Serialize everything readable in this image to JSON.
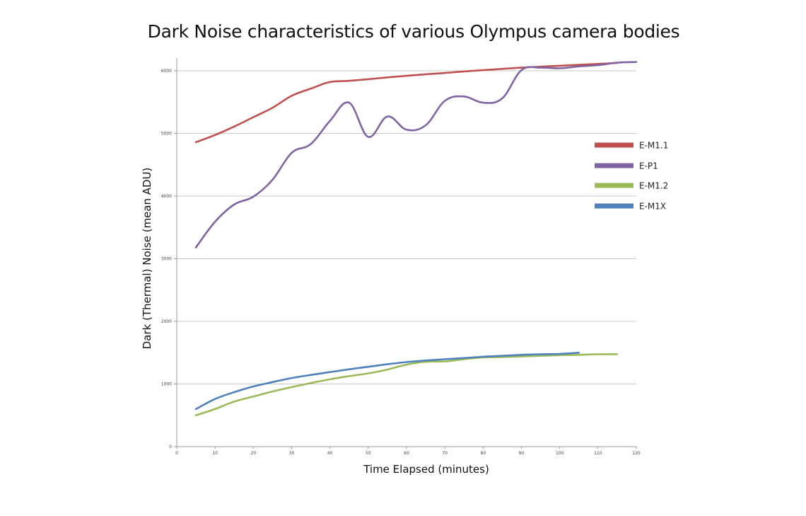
{
  "chart_data": {
    "type": "line",
    "title": "Dark Noise characteristics of various Olympus camera bodies",
    "xlabel": "Time Elapsed (minutes)",
    "ylabel": "Dark (Thermal) Noise  (mean ADU)",
    "xlim": [
      0,
      120
    ],
    "ylim": [
      0,
      6000
    ],
    "x_ticks": [
      0,
      10,
      20,
      30,
      40,
      50,
      60,
      70,
      80,
      90,
      100,
      110,
      120
    ],
    "y_ticks": [
      0,
      1000,
      2000,
      3000,
      4000,
      5000,
      6000
    ],
    "grid": "horizontal",
    "legend_position": "right",
    "series": [
      {
        "name": "E-M1.1",
        "color": "#C0504D",
        "x": [
          5,
          10,
          15,
          20,
          25,
          30,
          35,
          40,
          45,
          50,
          55,
          60,
          65,
          70,
          75,
          80,
          85,
          90,
          95,
          100,
          105,
          110,
          115
        ],
        "values": [
          4860,
          4975,
          5110,
          5260,
          5410,
          5600,
          5715,
          5820,
          5840,
          5865,
          5895,
          5920,
          5945,
          5965,
          5990,
          6010,
          6030,
          6050,
          6065,
          6080,
          6095,
          6110,
          6125
        ]
      },
      {
        "name": "E-P1",
        "color": "#8064A2",
        "x": [
          5,
          10,
          15,
          20,
          25,
          30,
          35,
          40,
          45,
          50,
          55,
          60,
          65,
          70,
          75,
          80,
          85,
          90,
          95,
          100,
          105,
          110,
          115,
          120
        ],
        "values": [
          3180,
          3590,
          3865,
          3990,
          4260,
          4690,
          4830,
          5200,
          5490,
          4945,
          5270,
          5060,
          5130,
          5520,
          5590,
          5490,
          5560,
          6010,
          6050,
          6040,
          6070,
          6090,
          6130,
          6140
        ]
      },
      {
        "name": "E-M1.2",
        "color": "#9BBB59",
        "x": [
          5,
          10,
          15,
          20,
          25,
          30,
          35,
          40,
          45,
          50,
          55,
          60,
          65,
          70,
          75,
          80,
          85,
          90,
          95,
          100,
          105,
          110,
          115
        ],
        "values": [
          500,
          600,
          720,
          800,
          880,
          950,
          1015,
          1075,
          1125,
          1170,
          1230,
          1310,
          1355,
          1360,
          1395,
          1425,
          1430,
          1440,
          1450,
          1460,
          1465,
          1475,
          1475
        ]
      },
      {
        "name": "E-M1X",
        "color": "#4F81BD",
        "x": [
          5,
          10,
          15,
          20,
          25,
          30,
          35,
          40,
          45,
          50,
          55,
          60,
          65,
          70,
          75,
          80,
          85,
          90,
          95,
          100,
          105
        ],
        "values": [
          600,
          760,
          870,
          960,
          1030,
          1095,
          1145,
          1190,
          1235,
          1275,
          1315,
          1350,
          1375,
          1395,
          1415,
          1435,
          1450,
          1465,
          1475,
          1480,
          1500
        ]
      }
    ]
  }
}
